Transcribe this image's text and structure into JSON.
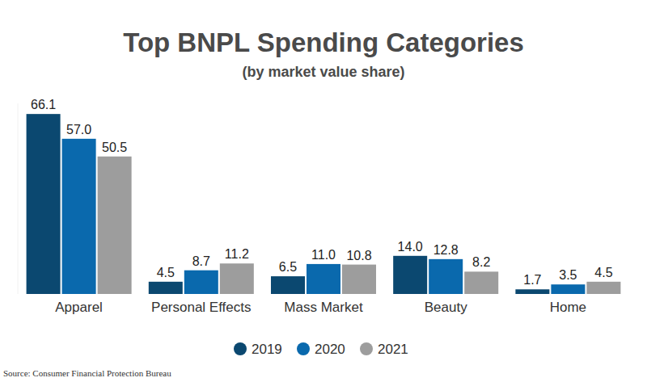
{
  "chart_data": {
    "type": "bar",
    "title": "Top BNPL Spending Categories",
    "subtitle": "(by market value share)",
    "categories": [
      "Apparel",
      "Personal Effects",
      "Mass Market",
      "Beauty",
      "Home"
    ],
    "series": [
      {
        "name": "2019",
        "color": "#0b4870",
        "values": [
          66.1,
          4.5,
          6.5,
          14.0,
          1.7
        ],
        "value_labels": [
          "66.1",
          "4.5",
          "6.5",
          "14.0",
          "1.7"
        ]
      },
      {
        "name": "2020",
        "color": "#0a69ad",
        "values": [
          57.0,
          8.7,
          11.0,
          12.8,
          3.5
        ],
        "value_labels": [
          "57.0",
          "8.7",
          "11.0",
          "12.8",
          "3.5"
        ]
      },
      {
        "name": "2021",
        "color": "#9d9d9d",
        "values": [
          50.5,
          11.2,
          10.8,
          8.2,
          4.5
        ],
        "value_labels": [
          "50.5",
          "11.2",
          "10.8",
          "8.2",
          "4.5"
        ]
      }
    ],
    "ylim": [
      0,
      70
    ],
    "data_labels": true,
    "tick_labels": "x",
    "legend": "bottom",
    "source": "Source: Consumer Financial Protection Bureau"
  }
}
